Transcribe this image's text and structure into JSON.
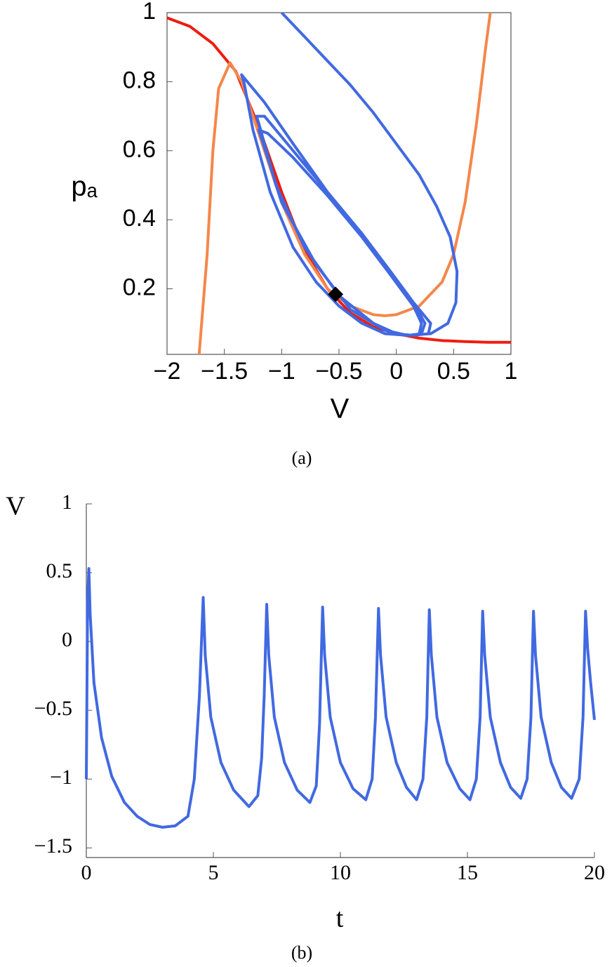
{
  "chart_data": [
    {
      "type": "line",
      "caption": "(a)",
      "x_label": "V",
      "y_label": "pₐ",
      "xlim": [
        -2,
        1
      ],
      "ylim": [
        0.01,
        1
      ],
      "xticks": [
        {
          "value": -2,
          "label": "−2"
        },
        {
          "value": -1.5,
          "label": "−1.5"
        },
        {
          "value": -1,
          "label": "−1"
        },
        {
          "value": -0.5,
          "label": "−0.5"
        },
        0,
        0.5,
        1
      ],
      "yticks": [
        0.2,
        0.4,
        0.6,
        0.8,
        1
      ],
      "series": [
        {
          "color": "#ee1c0e",
          "x": [
            -2,
            -1.8,
            -1.6,
            -1.4,
            -1.2,
            -1.0,
            -0.8,
            -0.6,
            -0.4,
            -0.2,
            0,
            0.2,
            0.4,
            0.6,
            0.8,
            1.0
          ],
          "values": [
            0.985,
            0.96,
            0.91,
            0.83,
            0.67,
            0.48,
            0.31,
            0.2,
            0.13,
            0.09,
            0.07,
            0.057,
            0.05,
            0.047,
            0.045,
            0.045
          ]
        },
        {
          "color": "#f4874b",
          "x": [
            -1.72,
            -1.65,
            -1.6,
            -1.55,
            -1.45,
            -1.35,
            -1.2,
            -1.0,
            -0.8,
            -0.6,
            -0.4,
            -0.2,
            -0.1,
            0,
            0.2,
            0.4,
            0.5,
            0.6,
            0.7,
            0.78,
            0.82
          ],
          "values": [
            0.01,
            0.3,
            0.6,
            0.78,
            0.855,
            0.8,
            0.65,
            0.45,
            0.3,
            0.2,
            0.15,
            0.125,
            0.122,
            0.125,
            0.15,
            0.22,
            0.3,
            0.45,
            0.68,
            0.9,
            1.0
          ]
        },
        {
          "color": "#4169e1",
          "x": [
            -1,
            -0.8,
            -0.6,
            -0.4,
            -0.2,
            0,
            0.2,
            0.35,
            0.47,
            0.53,
            0.52,
            0.45,
            0.3,
            0.1,
            -0.1,
            -0.3,
            -0.5,
            -0.7,
            -0.9,
            -1.1,
            -1.25,
            -1.33,
            -1.35,
            -1.3,
            -1.15,
            -0.9,
            -0.6,
            -0.3,
            -0.05,
            0.15,
            0.3,
            0.28,
            0.15,
            0,
            -0.2,
            -0.5,
            -0.8,
            -1.05,
            -1.2,
            -1.22,
            -1.15,
            -0.9,
            -0.6,
            -0.3,
            -0.05,
            0.15,
            0.25,
            0.22,
            0.1,
            -0.1,
            -0.4,
            -0.7,
            -1.0,
            -1.17,
            -1.2,
            -1.12,
            -0.9,
            -0.6,
            -0.3,
            -0.05,
            0.15,
            0.22,
            0.2
          ],
          "values": [
            1,
            0.93,
            0.86,
            0.79,
            0.71,
            0.62,
            0.53,
            0.44,
            0.35,
            0.25,
            0.16,
            0.1,
            0.07,
            0.065,
            0.07,
            0.1,
            0.15,
            0.22,
            0.32,
            0.48,
            0.66,
            0.8,
            0.82,
            0.8,
            0.74,
            0.62,
            0.48,
            0.35,
            0.24,
            0.16,
            0.1,
            0.07,
            0.065,
            0.07,
            0.1,
            0.18,
            0.32,
            0.5,
            0.68,
            0.7,
            0.7,
            0.6,
            0.48,
            0.36,
            0.25,
            0.16,
            0.1,
            0.07,
            0.065,
            0.08,
            0.14,
            0.27,
            0.45,
            0.63,
            0.66,
            0.65,
            0.58,
            0.47,
            0.35,
            0.24,
            0.15,
            0.1,
            0.07
          ]
        },
        {
          "color": "#000000",
          "marker": "diamond",
          "x": [
            -0.53
          ],
          "values": [
            0.184
          ]
        }
      ]
    },
    {
      "type": "line",
      "caption": "(b)",
      "x_label": "t",
      "y_label": "V",
      "xlim": [
        0,
        20
      ],
      "ylim": [
        -1.57,
        1
      ],
      "xticks": [
        0,
        5,
        10,
        15,
        20
      ],
      "yticks": [
        {
          "value": -1.5,
          "label": "−1.5"
        },
        {
          "value": -1,
          "label": "−1"
        },
        {
          "value": -0.5,
          "label": "−0.5"
        },
        0,
        0.5,
        1
      ],
      "series": [
        {
          "color": "#4169e1",
          "x": [
            0,
            0.05,
            0.1,
            0.15,
            0.3,
            0.6,
            1.0,
            1.5,
            2.0,
            2.5,
            3.0,
            3.5,
            4.0,
            4.25,
            4.45,
            4.6,
            4.68,
            4.9,
            5.3,
            5.8,
            6.4,
            6.75,
            6.9,
            7.0,
            7.1,
            7.18,
            7.4,
            7.8,
            8.3,
            8.8,
            9.05,
            9.18,
            9.3,
            9.38,
            9.6,
            10.0,
            10.5,
            11.0,
            11.25,
            11.38,
            11.5,
            11.58,
            11.8,
            12.2,
            12.6,
            13.0,
            13.25,
            13.4,
            13.5,
            13.58,
            13.8,
            14.2,
            14.7,
            15.1,
            15.35,
            15.5,
            15.6,
            15.68,
            15.9,
            16.3,
            16.7,
            17.1,
            17.35,
            17.5,
            17.6,
            17.68,
            17.9,
            18.3,
            18.7,
            19.1,
            19.4,
            19.55,
            19.65,
            19.73,
            19.85,
            20
          ],
          "values": [
            -1,
            0.3,
            0.53,
            0.2,
            -0.3,
            -0.7,
            -0.98,
            -1.17,
            -1.27,
            -1.33,
            -1.35,
            -1.34,
            -1.27,
            -1.0,
            -0.4,
            0.32,
            -0.1,
            -0.55,
            -0.88,
            -1.08,
            -1.2,
            -1.12,
            -0.85,
            -0.4,
            0.27,
            -0.1,
            -0.55,
            -0.88,
            -1.08,
            -1.17,
            -1.05,
            -0.6,
            0.25,
            -0.1,
            -0.55,
            -0.88,
            -1.07,
            -1.15,
            -1.0,
            -0.55,
            0.24,
            -0.1,
            -0.55,
            -0.88,
            -1.06,
            -1.15,
            -1.0,
            -0.55,
            0.23,
            -0.1,
            -0.55,
            -0.88,
            -1.07,
            -1.15,
            -1.0,
            -0.55,
            0.22,
            -0.1,
            -0.55,
            -0.88,
            -1.06,
            -1.14,
            -1.0,
            -0.55,
            0.22,
            -0.1,
            -0.55,
            -0.88,
            -1.06,
            -1.14,
            -1.0,
            -0.55,
            0.22,
            -0.05,
            -0.3,
            -0.57
          ]
        }
      ]
    }
  ]
}
